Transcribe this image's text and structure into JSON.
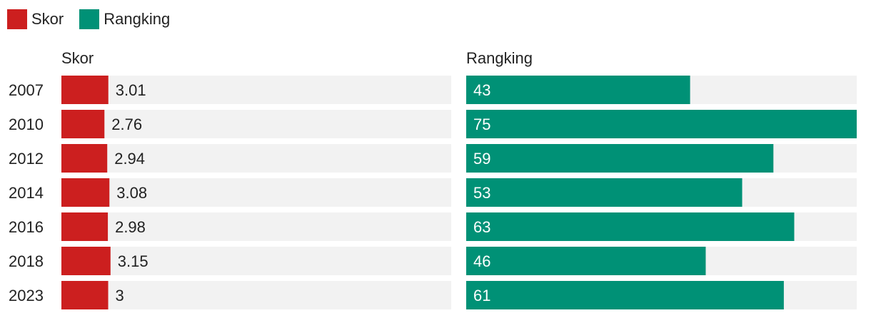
{
  "chart_data": {
    "type": "bar",
    "categories": [
      "2007",
      "2010",
      "2012",
      "2014",
      "2016",
      "2018",
      "2023"
    ],
    "series": [
      {
        "name": "Skor",
        "color": "#cc1f1f",
        "values": [
          3.01,
          2.76,
          2.94,
          3.08,
          2.98,
          3.15,
          3
        ],
        "max": 25
      },
      {
        "name": "Rangking",
        "color": "#009176",
        "values": [
          43,
          75,
          59,
          53,
          63,
          46,
          61
        ],
        "max": 75
      }
    ],
    "legend": {
      "position": "top-left"
    },
    "background_color": "#f2f2f2"
  }
}
